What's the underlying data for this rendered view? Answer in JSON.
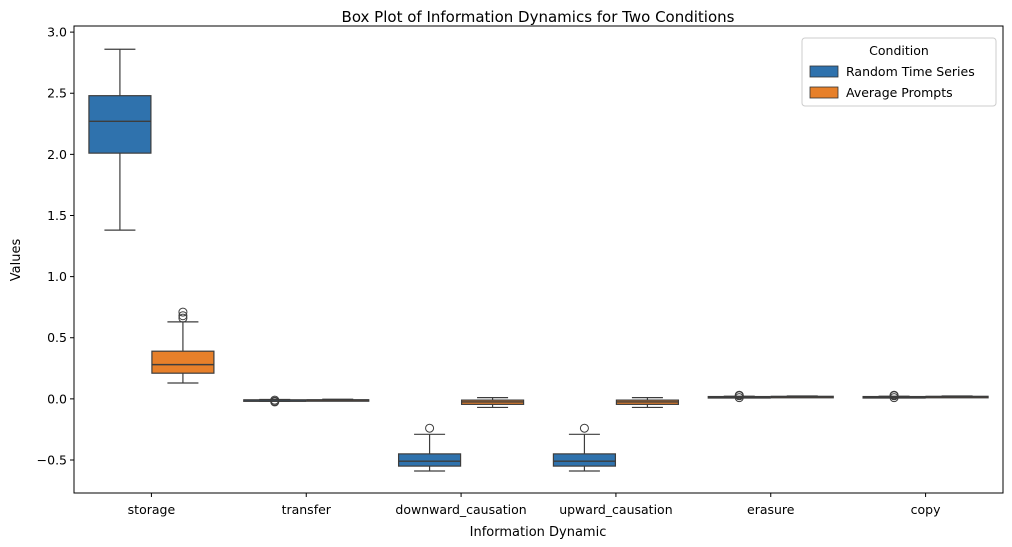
{
  "chart_data": {
    "type": "box",
    "title": "Box Plot of Information Dynamics for Two Conditions",
    "xlabel": "Information Dynamic",
    "ylabel": "Values",
    "ylim": [
      -0.77,
      3.05
    ],
    "yticks": [
      -0.5,
      0.0,
      0.5,
      1.0,
      1.5,
      2.0,
      2.5,
      3.0
    ],
    "ytick_labels": [
      "−0.5",
      "0.0",
      "0.5",
      "1.0",
      "1.5",
      "2.0",
      "2.5",
      "3.0"
    ],
    "categories": [
      "storage",
      "transfer",
      "downward_causation",
      "upward_causation",
      "erasure",
      "copy"
    ],
    "legend": {
      "title": "Condition",
      "placement": "top-right"
    },
    "grid": false,
    "series": [
      {
        "name": "Random Time Series",
        "color": "#2f72ad",
        "boxes": [
          {
            "whislo": 1.38,
            "q1": 2.01,
            "med": 2.27,
            "q3": 2.48,
            "whishi": 2.86,
            "fliers": []
          },
          {
            "whislo": -0.02,
            "q1": -0.015,
            "med": -0.01,
            "q3": -0.008,
            "whishi": -0.005,
            "fliers": [
              -0.01,
              -0.02,
              -0.025
            ]
          },
          {
            "whislo": -0.59,
            "q1": -0.55,
            "med": -0.51,
            "q3": -0.45,
            "whishi": -0.29,
            "fliers": [
              -0.24
            ]
          },
          {
            "whislo": -0.59,
            "q1": -0.55,
            "med": -0.51,
            "q3": -0.45,
            "whishi": -0.29,
            "fliers": [
              -0.24
            ]
          },
          {
            "whislo": 0.012,
            "q1": 0.015,
            "med": 0.017,
            "q3": 0.019,
            "whishi": 0.022,
            "fliers": [
              0.01,
              0.025,
              0.03
            ]
          },
          {
            "whislo": 0.012,
            "q1": 0.015,
            "med": 0.017,
            "q3": 0.019,
            "whishi": 0.022,
            "fliers": [
              0.01,
              0.025,
              0.03
            ]
          }
        ]
      },
      {
        "name": "Average Prompts",
        "color": "#e7802a",
        "boxes": [
          {
            "whislo": 0.13,
            "q1": 0.21,
            "med": 0.28,
            "q3": 0.39,
            "whishi": 0.63,
            "fliers": [
              0.66,
              0.68,
              0.71
            ]
          },
          {
            "whislo": -0.015,
            "q1": -0.013,
            "med": -0.01,
            "q3": -0.007,
            "whishi": -0.003,
            "fliers": []
          },
          {
            "whislo": -0.07,
            "q1": -0.045,
            "med": -0.025,
            "q3": -0.01,
            "whishi": 0.01,
            "fliers": []
          },
          {
            "whislo": -0.07,
            "q1": -0.045,
            "med": -0.025,
            "q3": -0.01,
            "whishi": 0.01,
            "fliers": []
          },
          {
            "whislo": 0.013,
            "q1": 0.016,
            "med": 0.018,
            "q3": 0.021,
            "whishi": 0.024,
            "fliers": []
          },
          {
            "whislo": 0.013,
            "q1": 0.016,
            "med": 0.018,
            "q3": 0.021,
            "whishi": 0.024,
            "fliers": []
          }
        ]
      }
    ]
  }
}
